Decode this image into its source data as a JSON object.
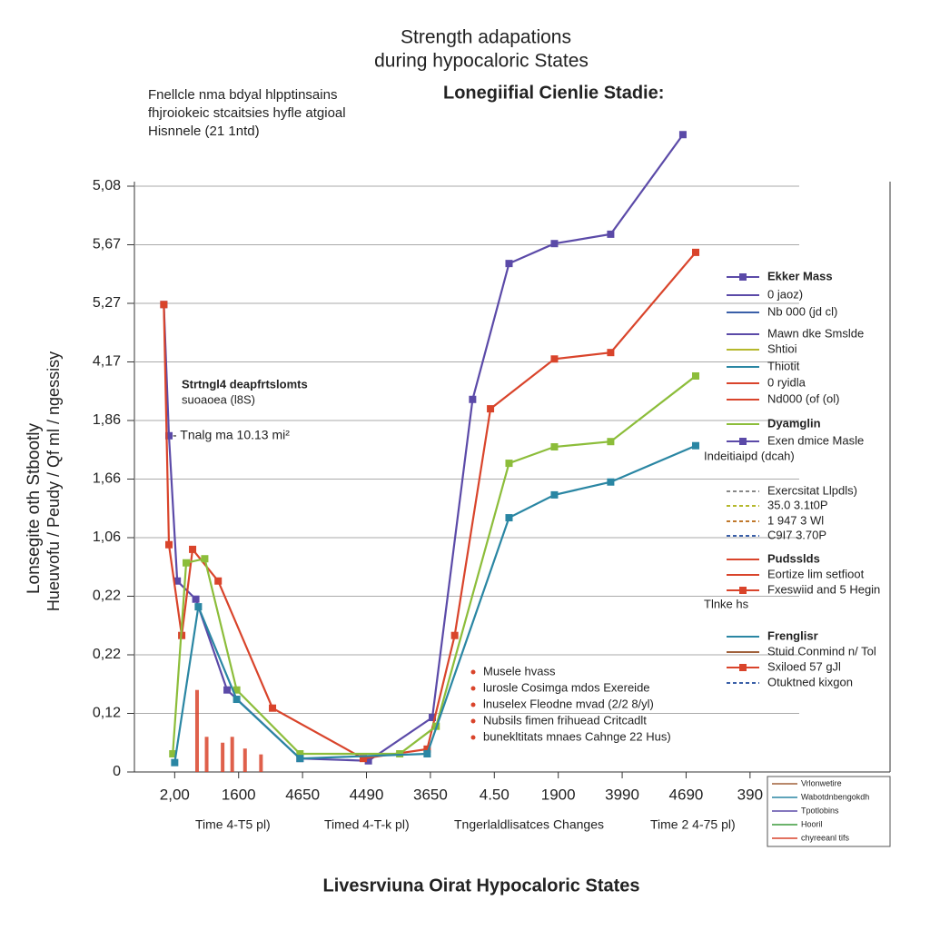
{
  "chart_data": {
    "type": "line",
    "title": [
      "Strength adapations",
      "during hypocaloric States"
    ],
    "subtitle": [
      "Fnellcle nma bdyal hlpptinsains",
      "fhjroiokeic stcaitsies hyfle atgioal",
      "Hisnnele (21 1ntd)"
    ],
    "heading": "Lonegiifial Cienlie Stadie:",
    "y_label": [
      "Lonsegite oth Stbootly",
      "Hueuvofu / Peudy / Qf ml / ngessisy"
    ],
    "x_sublabels": [
      "Time 4-T5 pl)",
      "Timed 4-T-k pl)",
      "Tngerlaldlisatces Changes",
      "Time 2 4-75 pl)"
    ],
    "footer": "Livesrviuna Oirat Hypocaloric States",
    "annotations": [
      "Strtngl4 deapfrtslomts",
      "suoaoea (l8S)",
      "- Tnalg ma 10.13 mi²"
    ],
    "xlim": [
      -0.63,
      11.19
    ],
    "xticks": [
      {
        "value": 0,
        "label": "2,00"
      },
      {
        "value": 1,
        "label": "1600"
      },
      {
        "value": 2,
        "label": "4650"
      },
      {
        "value": 3,
        "label": "4490"
      },
      {
        "value": 4,
        "label": "3650"
      },
      {
        "value": 5,
        "label": "4.50"
      },
      {
        "value": 6,
        "label": "1900"
      },
      {
        "value": 7,
        "label": "3990"
      },
      {
        "value": 8,
        "label": "4690"
      },
      {
        "value": 9,
        "label": "390"
      }
    ],
    "ylim": [
      0,
      10
    ],
    "yticks": [
      {
        "value": 0,
        "label": "0"
      },
      {
        "value": 1,
        "label": "0,12"
      },
      {
        "value": 2,
        "label": "0,22"
      },
      {
        "value": 3,
        "label": "0,22"
      },
      {
        "value": 4,
        "label": "1,06"
      },
      {
        "value": 5,
        "label": "1,66"
      },
      {
        "value": 6,
        "label": "1,86"
      },
      {
        "value": 7,
        "label": "4,17"
      },
      {
        "value": 8,
        "label": "5,27"
      },
      {
        "value": 9,
        "label": "5,67"
      },
      {
        "value": 10,
        "label": "5,08"
      }
    ],
    "grid": true,
    "series": [
      {
        "name": "Ekker Mass",
        "color": "#5b4aa8",
        "x": [
          -0.17,
          -0.09,
          0.04,
          0.33,
          0.82,
          1.96,
          3.03,
          4.03,
          4.66,
          5.23,
          5.94,
          6.82,
          7.95
        ],
        "values": [
          7.98,
          5.74,
          3.26,
          2.95,
          1.4,
          0.23,
          0.19,
          0.93,
          6.36,
          8.68,
          9.02,
          9.18,
          10.88
        ]
      },
      {
        "name": "Pudsslds",
        "color": "#d9442b",
        "x": [
          -0.17,
          -0.09,
          0.11,
          0.28,
          0.68,
          1.53,
          2.95,
          3.95,
          4.38,
          4.94,
          5.94,
          6.82,
          8.15
        ],
        "values": [
          7.98,
          3.88,
          2.33,
          3.8,
          3.26,
          1.09,
          0.23,
          0.39,
          2.33,
          6.2,
          7.05,
          7.16,
          8.87
        ]
      },
      {
        "name": "Dyamglin",
        "color": "#8cbd3a",
        "x": [
          -0.03,
          0.18,
          0.47,
          0.97,
          1.96,
          3.52,
          4.09,
          5.23,
          5.94,
          6.82,
          8.15
        ],
        "values": [
          0.31,
          3.57,
          3.64,
          1.4,
          0.31,
          0.31,
          0.78,
          5.27,
          5.55,
          5.64,
          6.76
        ]
      },
      {
        "name": "Frenglisr",
        "color": "#2a86a3",
        "x": [
          0,
          0.37,
          0.97,
          1.96,
          3.95,
          5.23,
          5.94,
          6.82,
          8.15
        ],
        "values": [
          0.16,
          2.82,
          1.24,
          0.23,
          0.31,
          4.34,
          4.73,
          4.95,
          5.57
        ]
      }
    ],
    "bars": {
      "color": "#d9442b",
      "x": [
        0.35,
        0.5,
        0.75,
        0.9,
        1.1,
        1.35
      ],
      "values": [
        1.4,
        0.6,
        0.5,
        0.6,
        0.4,
        0.3
      ]
    },
    "legend_notes": [
      {
        "label": "0 jaoz)",
        "color": "#5b4aa8",
        "style": "line"
      },
      {
        "label": "Nb 000 (jd cl)",
        "color": "#3a5fa8",
        "style": "line"
      },
      {
        "label": "Mawn dke Smslde",
        "color": "#5b4aa8",
        "style": "line"
      },
      {
        "label": "Shtioi",
        "color": "#b5b82c",
        "style": "line"
      },
      {
        "label": "Thiotit",
        "color": "#2a86a3",
        "style": "line"
      },
      {
        "label": "0 ryidla",
        "color": "#d9442b",
        "style": "line"
      },
      {
        "label": "Nd000 (of (ol)",
        "color": "#d9442b",
        "style": "line"
      },
      {
        "label": "Exen dmice Masle",
        "color": "#5b4aa8",
        "style": "marker"
      },
      {
        "label": "Indeitiaipd (dcah)",
        "color": "#555555",
        "style": "none"
      },
      {
        "label": "Exercsitat Llpdls)",
        "color": "#888888",
        "style": "dash"
      },
      {
        "label": "35.0 3.1t0P",
        "color": "#b5b82c",
        "style": "dash"
      },
      {
        "label": "1 947 3 Wl",
        "color": "#c0782c",
        "style": "dash"
      },
      {
        "label": "C9I7 3.70P",
        "color": "#3a5fa8",
        "style": "dash"
      },
      {
        "label": "Eortize lim setfioot",
        "color": "#d9442b",
        "style": "line"
      },
      {
        "label": "Fxeswiid and 5 Hegin",
        "color": "#d9442b",
        "style": "marker"
      },
      {
        "label": "Tlnke hs",
        "color": "#555555",
        "style": "none"
      },
      {
        "label": "Stuid Conmind n/ Tol",
        "color": "#a0603a",
        "style": "line"
      },
      {
        "label": "Sxiloed 57 gJl",
        "color": "#d9442b",
        "style": "marker"
      },
      {
        "label": "Otuktned kixgon",
        "color": "#3a5fa8",
        "style": "dash"
      }
    ],
    "notes": [
      "Musele hvass",
      "lurosle Cosimga mdos Exereide",
      "lnuselex Fleodne mvad (2/2 8/yl)",
      "Nubsils fimen frihuead Critcadlt",
      "bunekltitats mnaes Cahnge 22 Hus)"
    ],
    "notes_color": "#d9442b",
    "box_legend": [
      {
        "label": "Vrlonwetire",
        "color": "#a0603a"
      },
      {
        "label": "Wabotdnbengokdh",
        "color": "#2a86a3"
      },
      {
        "label": "Tpotlobins",
        "color": "#5b4aa8"
      },
      {
        "label": "Hooril",
        "color": "#3a9a3a"
      },
      {
        "label": "chyreeanl tifs",
        "color": "#d9442b"
      }
    ]
  }
}
